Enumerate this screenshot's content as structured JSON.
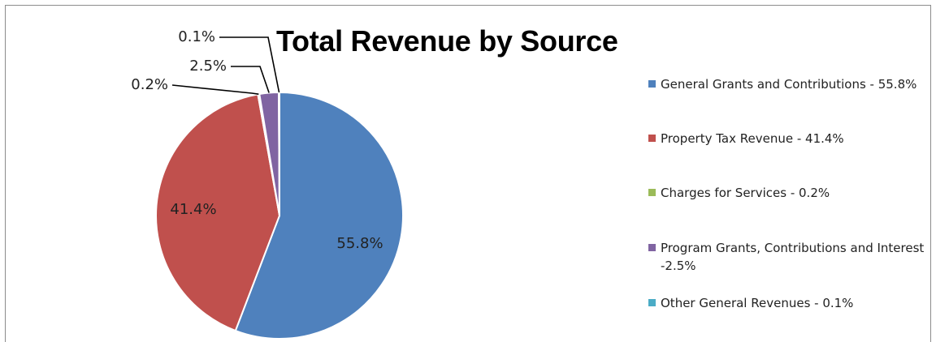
{
  "chart_data": {
    "type": "pie",
    "title": "Total Revenue by Source",
    "slices": [
      {
        "legend_label": "General Grants and Contributions - 55.8%",
        "value": 55.8,
        "data_label": "55.8%",
        "color": "#4f81bd"
      },
      {
        "legend_label": "Property Tax Revenue - 41.4%",
        "value": 41.4,
        "data_label": "41.4%",
        "color": "#c0504d"
      },
      {
        "legend_label": "Charges for Services - 0.2%",
        "value": 0.2,
        "data_label": "0.2%",
        "color": "#9bbb59"
      },
      {
        "legend_label": "Program Grants, Contributions and Interest -2.5%",
        "value": 2.5,
        "data_label": "2.5%",
        "color": "#8064a2"
      },
      {
        "legend_label": "Other General Revenues - 0.1%",
        "value": 0.1,
        "data_label": "0.1%",
        "color": "#4bacc6"
      }
    ],
    "legend_position": "right"
  }
}
